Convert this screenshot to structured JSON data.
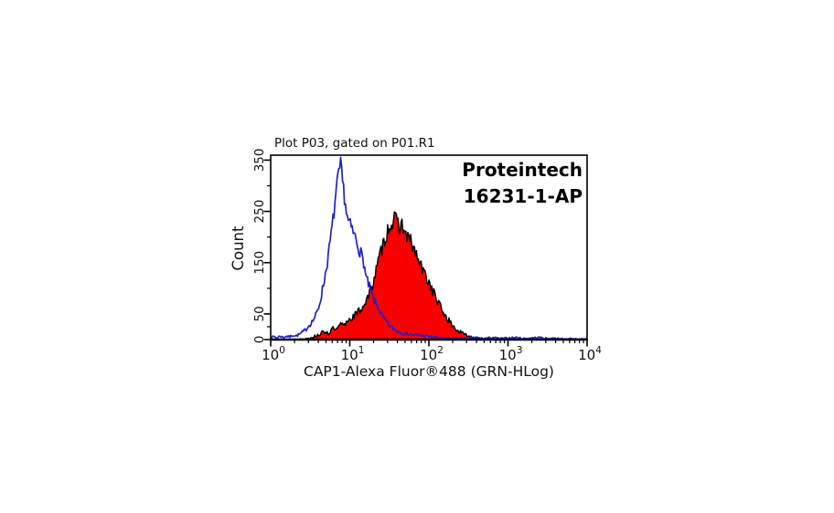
{
  "chart_data": {
    "type": "area",
    "subtype": "flow-cytometry-histogram-overlay",
    "title": "Plot P03, gated on P01.R1",
    "xlabel": "CAP1-Alexa Fluor®488 (GRN-HLog)",
    "ylabel": "Count",
    "annotation": {
      "line1": "Proteintech",
      "line2": "16231-1-AP"
    },
    "x_scale": "log10",
    "x_range_log10": [
      0,
      4
    ],
    "x_tick_base": "10",
    "x_major_tick_exponents": [
      0,
      1,
      2,
      3,
      4
    ],
    "ylim": [
      0,
      360
    ],
    "y_major_ticks": [
      0,
      50,
      150,
      250,
      350
    ],
    "y_minor_ticks": [
      25,
      100,
      200,
      300
    ],
    "grid": false,
    "legend": false,
    "colors": {
      "blue_curve": "#2121cc",
      "red_fill": "#fb0000",
      "red_outline": "#000000",
      "axis": "#000000",
      "text": "#111111"
    },
    "series": [
      {
        "name": "red-filled-histogram",
        "style": "filled",
        "color": "#fb0000",
        "outline": "#000000",
        "noise_amp": 1.1,
        "noise_seed": 13,
        "points_log10x_count": [
          [
            0.0,
            0
          ],
          [
            0.2,
            0
          ],
          [
            0.3,
            0
          ],
          [
            0.4,
            1
          ],
          [
            0.45,
            2
          ],
          [
            0.5,
            4
          ],
          [
            0.55,
            6
          ],
          [
            0.6,
            9
          ],
          [
            0.65,
            13
          ],
          [
            0.7,
            16
          ],
          [
            0.73,
            11
          ],
          [
            0.76,
            18
          ],
          [
            0.8,
            22
          ],
          [
            0.83,
            17
          ],
          [
            0.86,
            25
          ],
          [
            0.9,
            30
          ],
          [
            0.93,
            26
          ],
          [
            0.97,
            38
          ],
          [
            1.0,
            40
          ],
          [
            1.04,
            45
          ],
          [
            1.09,
            51
          ],
          [
            1.13,
            58
          ],
          [
            1.17,
            66
          ],
          [
            1.2,
            75
          ],
          [
            1.24,
            85
          ],
          [
            1.28,
            105
          ],
          [
            1.32,
            128
          ],
          [
            1.36,
            150
          ],
          [
            1.4,
            175
          ],
          [
            1.44,
            195
          ],
          [
            1.48,
            215
          ],
          [
            1.52,
            226
          ],
          [
            1.56,
            233
          ],
          [
            1.6,
            230
          ],
          [
            1.63,
            220
          ],
          [
            1.66,
            226
          ],
          [
            1.7,
            205
          ],
          [
            1.74,
            198
          ],
          [
            1.78,
            188
          ],
          [
            1.82,
            172
          ],
          [
            1.86,
            158
          ],
          [
            1.9,
            142
          ],
          [
            1.94,
            130
          ],
          [
            1.98,
            118
          ],
          [
            2.02,
            106
          ],
          [
            2.06,
            92
          ],
          [
            2.1,
            78
          ],
          [
            2.14,
            65
          ],
          [
            2.18,
            54
          ],
          [
            2.22,
            44
          ],
          [
            2.26,
            35
          ],
          [
            2.3,
            27
          ],
          [
            2.35,
            19
          ],
          [
            2.4,
            14
          ],
          [
            2.45,
            10
          ],
          [
            2.5,
            7
          ],
          [
            2.55,
            5
          ],
          [
            2.6,
            3
          ],
          [
            2.66,
            2
          ],
          [
            2.72,
            2
          ],
          [
            2.78,
            1
          ],
          [
            2.85,
            1
          ],
          [
            2.92,
            0
          ],
          [
            3.0,
            0
          ],
          [
            3.5,
            0
          ],
          [
            4.0,
            0
          ]
        ]
      },
      {
        "name": "blue-open-histogram",
        "style": "open",
        "color": "#2121cc",
        "noise_amp": 0.9,
        "noise_seed": 7,
        "points_log10x_count": [
          [
            0.0,
            3
          ],
          [
            0.04,
            6
          ],
          [
            0.08,
            3
          ],
          [
            0.12,
            7
          ],
          [
            0.16,
            4
          ],
          [
            0.2,
            7
          ],
          [
            0.24,
            5
          ],
          [
            0.28,
            9
          ],
          [
            0.32,
            7
          ],
          [
            0.36,
            10
          ],
          [
            0.4,
            14
          ],
          [
            0.44,
            19
          ],
          [
            0.48,
            27
          ],
          [
            0.52,
            34
          ],
          [
            0.56,
            44
          ],
          [
            0.6,
            58
          ],
          [
            0.64,
            86
          ],
          [
            0.68,
            118
          ],
          [
            0.72,
            155
          ],
          [
            0.76,
            200
          ],
          [
            0.8,
            248
          ],
          [
            0.83,
            290
          ],
          [
            0.86,
            322
          ],
          [
            0.885,
            340
          ],
          [
            0.9,
            318
          ],
          [
            0.92,
            295
          ],
          [
            0.94,
            270
          ],
          [
            0.97,
            235
          ],
          [
            1.0,
            225
          ],
          [
            1.04,
            210
          ],
          [
            1.08,
            195
          ],
          [
            1.12,
            175
          ],
          [
            1.15,
            165
          ],
          [
            1.18,
            148
          ],
          [
            1.2,
            125
          ],
          [
            1.23,
            110
          ],
          [
            1.26,
            98
          ],
          [
            1.3,
            78
          ],
          [
            1.33,
            70
          ],
          [
            1.36,
            63
          ],
          [
            1.39,
            51
          ],
          [
            1.43,
            40
          ],
          [
            1.47,
            33
          ],
          [
            1.51,
            26
          ],
          [
            1.55,
            21
          ],
          [
            1.59,
            17
          ],
          [
            1.63,
            15
          ],
          [
            1.68,
            12
          ],
          [
            1.74,
            11
          ],
          [
            1.8,
            9
          ],
          [
            1.9,
            8
          ],
          [
            2.0,
            6
          ],
          [
            2.1,
            4
          ],
          [
            2.2,
            2
          ],
          [
            2.3,
            3
          ],
          [
            2.4,
            2
          ],
          [
            2.5,
            3
          ],
          [
            2.6,
            4
          ],
          [
            2.7,
            2
          ],
          [
            2.8,
            4
          ],
          [
            2.9,
            2
          ],
          [
            3.0,
            3
          ],
          [
            3.1,
            4
          ],
          [
            3.2,
            2
          ],
          [
            3.3,
            3
          ],
          [
            3.4,
            4
          ],
          [
            3.5,
            2
          ],
          [
            3.6,
            3
          ],
          [
            3.7,
            1
          ],
          [
            3.8,
            2
          ],
          [
            3.9,
            1
          ],
          [
            4.0,
            1
          ]
        ]
      }
    ]
  }
}
